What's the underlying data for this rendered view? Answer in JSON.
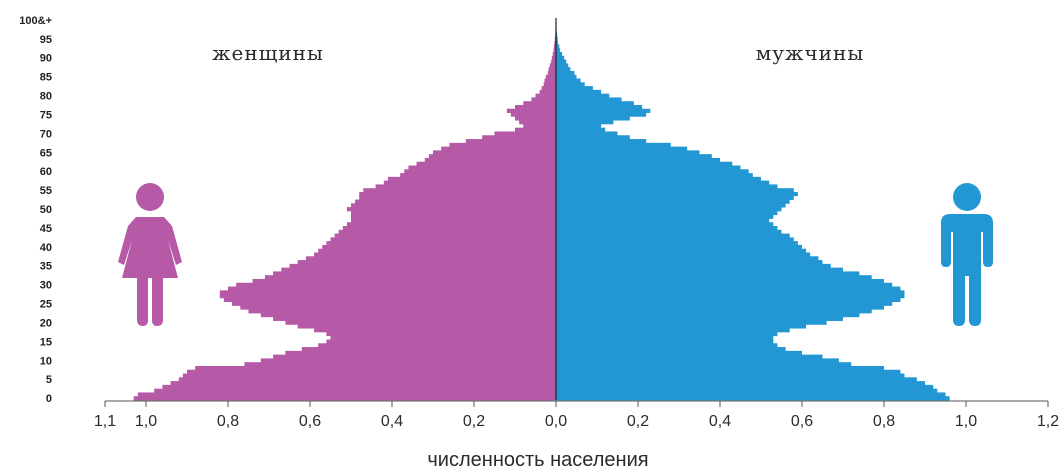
{
  "chart_data": {
    "type": "bar",
    "orientation": "horizontal",
    "subtype": "population-pyramid",
    "xlabel": "численность населения",
    "xlim": [
      -1.1,
      1.2
    ],
    "x_tick_labels": [
      "1,1",
      "1,0",
      "0,8",
      "0,6",
      "0,4",
      "0,2",
      "0,0",
      "0,2",
      "0,4",
      "0,6",
      "0,8",
      "1,0",
      "1,2"
    ],
    "y_tick_labels": [
      "0",
      "5",
      "10",
      "15",
      "20",
      "25",
      "30",
      "35",
      "40",
      "45",
      "50",
      "55",
      "60",
      "65",
      "70",
      "75",
      "80",
      "85",
      "90",
      "95",
      "100&+"
    ],
    "ages": [
      0,
      1,
      2,
      3,
      4,
      5,
      6,
      7,
      8,
      9,
      10,
      11,
      12,
      13,
      14,
      15,
      16,
      17,
      18,
      19,
      20,
      21,
      22,
      23,
      24,
      25,
      26,
      27,
      28,
      29,
      30,
      31,
      32,
      33,
      34,
      35,
      36,
      37,
      38,
      39,
      40,
      41,
      42,
      43,
      44,
      45,
      46,
      47,
      48,
      49,
      50,
      51,
      52,
      53,
      54,
      55,
      56,
      57,
      58,
      59,
      60,
      61,
      62,
      63,
      64,
      65,
      66,
      67,
      68,
      69,
      70,
      71,
      72,
      73,
      74,
      75,
      76,
      77,
      78,
      79,
      80,
      81,
      82,
      83,
      84,
      85,
      86,
      87,
      88,
      89,
      90,
      91,
      92,
      93,
      94,
      95,
      96,
      97,
      98,
      99,
      100
    ],
    "series": [
      {
        "name": "женщины",
        "color": "#b65aa8",
        "values": [
          1.03,
          1.02,
          0.98,
          0.96,
          0.94,
          0.92,
          0.91,
          0.9,
          0.88,
          0.76,
          0.72,
          0.69,
          0.66,
          0.62,
          0.58,
          0.56,
          0.55,
          0.56,
          0.59,
          0.63,
          0.66,
          0.69,
          0.72,
          0.75,
          0.77,
          0.79,
          0.81,
          0.82,
          0.82,
          0.8,
          0.78,
          0.74,
          0.71,
          0.69,
          0.67,
          0.65,
          0.63,
          0.61,
          0.59,
          0.58,
          0.57,
          0.56,
          0.55,
          0.54,
          0.53,
          0.52,
          0.51,
          0.5,
          0.5,
          0.5,
          0.51,
          0.5,
          0.49,
          0.48,
          0.48,
          0.47,
          0.44,
          0.42,
          0.41,
          0.38,
          0.37,
          0.36,
          0.34,
          0.32,
          0.31,
          0.3,
          0.28,
          0.26,
          0.22,
          0.18,
          0.15,
          0.1,
          0.08,
          0.09,
          0.1,
          0.11,
          0.12,
          0.1,
          0.08,
          0.06,
          0.05,
          0.04,
          0.035,
          0.03,
          0.028,
          0.025,
          0.02,
          0.018,
          0.015,
          0.012,
          0.01,
          0.008,
          0.006,
          0.005,
          0.004,
          0.003,
          0.002,
          0.001,
          0.001,
          0.001,
          0.001
        ]
      },
      {
        "name": "мужчины",
        "color": "#2397d4",
        "values": [
          0.96,
          0.95,
          0.93,
          0.92,
          0.9,
          0.88,
          0.85,
          0.84,
          0.8,
          0.72,
          0.69,
          0.65,
          0.6,
          0.56,
          0.54,
          0.53,
          0.53,
          0.54,
          0.57,
          0.61,
          0.66,
          0.7,
          0.74,
          0.77,
          0.8,
          0.82,
          0.84,
          0.85,
          0.85,
          0.84,
          0.82,
          0.8,
          0.77,
          0.74,
          0.7,
          0.67,
          0.65,
          0.64,
          0.62,
          0.61,
          0.6,
          0.59,
          0.58,
          0.57,
          0.55,
          0.54,
          0.53,
          0.52,
          0.53,
          0.54,
          0.55,
          0.56,
          0.57,
          0.58,
          0.59,
          0.58,
          0.54,
          0.52,
          0.5,
          0.48,
          0.47,
          0.45,
          0.43,
          0.4,
          0.38,
          0.35,
          0.32,
          0.28,
          0.22,
          0.18,
          0.15,
          0.12,
          0.11,
          0.14,
          0.18,
          0.22,
          0.23,
          0.21,
          0.19,
          0.16,
          0.13,
          0.11,
          0.09,
          0.07,
          0.06,
          0.05,
          0.045,
          0.035,
          0.03,
          0.025,
          0.02,
          0.015,
          0.01,
          0.008,
          0.005,
          0.004,
          0.003,
          0.002,
          0.001,
          0.001,
          0.001
        ]
      }
    ]
  },
  "labels": {
    "left": "женщины",
    "right": "мужчины"
  },
  "icons": {
    "left": "female-figure-icon",
    "right": "male-figure-icon"
  }
}
